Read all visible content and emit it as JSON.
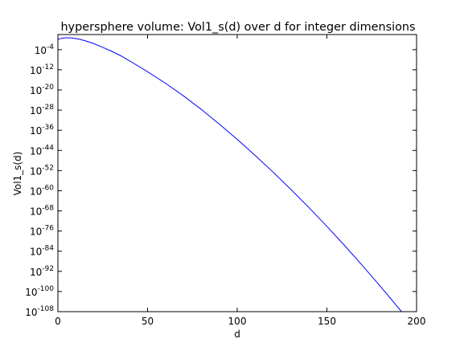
{
  "chart_data": {
    "type": "line",
    "title": "hypersphere volume: Vol1_s(d) over d for integer dimensions",
    "xlabel": "d",
    "ylabel": "Vol1_s(d)",
    "xlim": [
      0,
      200
    ],
    "ylim_exponent": [
      -108,
      2
    ],
    "y_scale": "log",
    "grid": false,
    "x_ticks": [
      {
        "value": 0,
        "label": "0"
      },
      {
        "value": 50,
        "label": "50"
      },
      {
        "value": 100,
        "label": "100"
      },
      {
        "value": 150,
        "label": "150"
      },
      {
        "value": 200,
        "label": "200"
      }
    ],
    "y_ticks": [
      {
        "exp": -4,
        "base": "10",
        "sup": "-4"
      },
      {
        "exp": -12,
        "base": "10",
        "sup": "-12"
      },
      {
        "exp": -20,
        "base": "10",
        "sup": "-20"
      },
      {
        "exp": -28,
        "base": "10",
        "sup": "-28"
      },
      {
        "exp": -36,
        "base": "10",
        "sup": "-36"
      },
      {
        "exp": -44,
        "base": "10",
        "sup": "-44"
      },
      {
        "exp": -52,
        "base": "10",
        "sup": "-52"
      },
      {
        "exp": -60,
        "base": "10",
        "sup": "-60"
      },
      {
        "exp": -68,
        "base": "10",
        "sup": "-68"
      },
      {
        "exp": -76,
        "base": "10",
        "sup": "-76"
      },
      {
        "exp": -84,
        "base": "10",
        "sup": "-84"
      },
      {
        "exp": -92,
        "base": "10",
        "sup": "-92"
      },
      {
        "exp": -100,
        "base": "10",
        "sup": "-100"
      },
      {
        "exp": -108,
        "base": "10",
        "sup": "-108"
      }
    ],
    "series": [
      {
        "color": "#0000ff",
        "points": [
          [
            0,
            1
          ],
          [
            1,
            2
          ],
          [
            2,
            3.1416
          ],
          [
            3,
            4.1888
          ],
          [
            4,
            4.9348
          ],
          [
            5,
            5.2638
          ],
          [
            6,
            5.1677
          ],
          [
            7,
            4.7248
          ],
          [
            8,
            4.0587
          ],
          [
            10,
            2.5502
          ],
          [
            12,
            1.3353
          ],
          [
            15,
            0.3814
          ],
          [
            20,
            0.02581
          ],
          [
            25,
            0.0008501
          ],
          [
            30,
            2.191e-05
          ],
          [
            35,
            3.9e-07
          ],
          [
            40,
            3.6e-09
          ],
          [
            50,
            1.73e-13
          ],
          [
            60,
            4.7e-18
          ],
          [
            70,
            4.7e-23
          ],
          [
            80,
            1.8e-28
          ],
          [
            90,
            2.9e-34
          ],
          [
            100,
            2.37e-40
          ],
          [
            110,
            1e-46
          ],
          [
            120,
            2.4e-53
          ],
          [
            130,
            3e-60
          ],
          [
            140,
            2e-67
          ],
          [
            150,
            7.1e-75
          ],
          [
            160,
            1.4e-82
          ],
          [
            170,
            1.4e-90
          ],
          [
            180,
            8e-99
          ],
          [
            190,
            2.5e-107
          ],
          [
            200,
            5.5e-116
          ]
        ]
      }
    ]
  }
}
